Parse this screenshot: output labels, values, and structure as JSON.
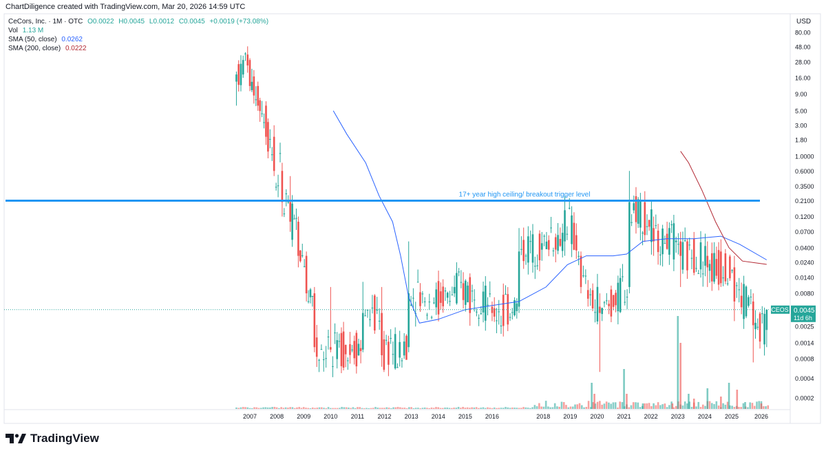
{
  "header": {
    "created_by": "ChartDiligence created with TradingView.com, Mar 20, 2026 14:59 UTC"
  },
  "legend": {
    "symbol_line": "CeCors, Inc. · 1M · OTC",
    "o": "O0.0022",
    "h": "H0.0045",
    "l": "L0.0012",
    "c": "C0.0045",
    "change": "+0.0019 (+73.08%)",
    "vol_label": "Vol",
    "vol_value": "1.13 M",
    "sma50_label": "SMA (50, close)",
    "sma50_value": "0.0262",
    "sma200_label": "SMA (200, close)",
    "sma200_value": "0.0222"
  },
  "colors": {
    "up": "#26a69a",
    "down": "#ef5350",
    "sma50": "#2962ff",
    "sma200": "#b22833",
    "trendline": "#2196f3",
    "annotation": "#2196f3",
    "last_price": "#26a69a"
  },
  "price_axis": {
    "currency": "USD",
    "last_price_label": "0.0045",
    "last_price_timer": "11d 6h",
    "symbol_tag": "CEOS"
  },
  "footer": {
    "brand": "TradingView"
  },
  "chart_data": {
    "type": "candlestick",
    "scale": "log",
    "interval": "1M",
    "y_ticks": [
      "80.00",
      "48.00",
      "28.00",
      "16.00",
      "9.00",
      "5.00",
      "3.00",
      "1.80",
      "1.0000",
      "0.6000",
      "0.3500",
      "0.2100",
      "0.1200",
      "0.0700",
      "0.0400",
      "0.0240",
      "0.0140",
      "0.0080",
      "0.0045",
      "0.0025",
      "0.0014",
      "0.0008",
      "0.0004",
      "0.0002"
    ],
    "x_ticks": [
      "2007",
      "2008",
      "2009",
      "2010",
      "2011",
      "2012",
      "2013",
      "2014",
      "2015",
      "2016",
      "2018",
      "2019",
      "2020",
      "2021",
      "2022",
      "2023",
      "2024",
      "2025",
      "2026"
    ],
    "horizontal_line": {
      "value": 0.21,
      "label": "17+ year high ceiling/ breakout trigger level"
    },
    "last_price": 0.0045,
    "candles_approx": [
      {
        "t": "2006.5",
        "o": 14,
        "h": 20,
        "l": 6,
        "c": 18
      },
      {
        "t": "2006.75",
        "o": 18,
        "h": 35,
        "l": 16,
        "c": 30
      },
      {
        "t": "2007.0",
        "o": 30,
        "h": 32,
        "l": 10,
        "c": 12
      },
      {
        "t": "2007.3",
        "o": 12,
        "h": 14,
        "l": 5,
        "c": 6
      },
      {
        "t": "2007.6",
        "o": 6,
        "h": 7,
        "l": 1.5,
        "c": 2
      },
      {
        "t": "2007.9",
        "o": 2,
        "h": 3,
        "l": 0.5,
        "c": 0.6
      },
      {
        "t": "2008.2",
        "o": 0.6,
        "h": 0.8,
        "l": 0.12,
        "c": 0.2
      },
      {
        "t": "2008.5",
        "o": 0.2,
        "h": 0.5,
        "l": 0.07,
        "c": 0.1
      },
      {
        "t": "2008.8",
        "o": 0.1,
        "h": 0.12,
        "l": 0.02,
        "c": 0.03
      },
      {
        "t": "2009.1",
        "o": 0.03,
        "h": 0.035,
        "l": 0.006,
        "c": 0.008
      },
      {
        "t": "2009.4",
        "o": 0.008,
        "h": 0.01,
        "l": 0.001,
        "c": 0.0012
      },
      {
        "t": "2010.0",
        "o": 0.0012,
        "h": 0.01,
        "l": 0.001,
        "c": 0.0011
      },
      {
        "t": "2010.8",
        "o": 0.0011,
        "h": 0.0013,
        "l": 0.001,
        "c": 0.0011
      },
      {
        "t": "2011.2",
        "o": 0.0011,
        "h": 0.012,
        "l": 0.001,
        "c": 0.004
      },
      {
        "t": "2011.9",
        "o": 0.004,
        "h": 0.01,
        "l": 0.0006,
        "c": 0.0009
      },
      {
        "t": "2012.9",
        "o": 0.0012,
        "h": 0.05,
        "l": 0.001,
        "c": 0.008
      },
      {
        "t": "2013.5",
        "o": 0.006,
        "h": 0.007,
        "l": 0.005,
        "c": 0.006
      },
      {
        "t": "2014.6",
        "o": 0.008,
        "h": 0.015,
        "l": 0.007,
        "c": 0.01
      },
      {
        "t": "2016.0",
        "o": 0.005,
        "h": 0.006,
        "l": 0.003,
        "c": 0.004
      },
      {
        "t": "2017.0",
        "o": 0.005,
        "h": 0.08,
        "l": 0.004,
        "c": 0.035
      },
      {
        "t": "2018.7",
        "o": 0.05,
        "h": 0.25,
        "l": 0.03,
        "c": 0.15
      },
      {
        "t": "2019.3",
        "o": 0.03,
        "h": 0.035,
        "l": 0.008,
        "c": 0.01
      },
      {
        "t": "2020.0",
        "o": 0.005,
        "h": 0.008,
        "l": 0.0005,
        "c": 0.004
      },
      {
        "t": "2021.1",
        "o": 0.01,
        "h": 0.6,
        "l": 0.008,
        "c": 0.2
      },
      {
        "t": "2022.0",
        "o": 0.08,
        "h": 0.12,
        "l": 0.03,
        "c": 0.05
      },
      {
        "t": "2023.0",
        "o": 0.05,
        "h": 0.07,
        "l": 0.01,
        "c": 0.03
      },
      {
        "t": "2024.0",
        "o": 0.03,
        "h": 0.05,
        "l": 0.01,
        "c": 0.02
      },
      {
        "t": "2025.0",
        "o": 0.02,
        "h": 0.03,
        "l": 0.003,
        "c": 0.006
      },
      {
        "t": "2025.7",
        "o": 0.006,
        "h": 0.008,
        "l": 0.0007,
        "c": 0.0026
      },
      {
        "t": "2026.2",
        "o": 0.0022,
        "h": 0.0045,
        "l": 0.0012,
        "c": 0.0045
      }
    ],
    "sma50_approx": [
      {
        "t": 2010.1,
        "v": 5.0
      },
      {
        "t": 2010.6,
        "v": 2.2
      },
      {
        "t": 2011.3,
        "v": 0.8
      },
      {
        "t": 2011.8,
        "v": 0.25
      },
      {
        "t": 2012.3,
        "v": 0.1
      },
      {
        "t": 2012.6,
        "v": 0.03
      },
      {
        "t": 2012.9,
        "v": 0.007
      },
      {
        "t": 2013.3,
        "v": 0.0028
      },
      {
        "t": 2014.0,
        "v": 0.0032
      },
      {
        "t": 2015.0,
        "v": 0.0045
      },
      {
        "t": 2016.0,
        "v": 0.0052
      },
      {
        "t": 2017.0,
        "v": 0.006
      },
      {
        "t": 2018.0,
        "v": 0.01
      },
      {
        "t": 2018.8,
        "v": 0.022
      },
      {
        "t": 2019.5,
        "v": 0.03
      },
      {
        "t": 2020.5,
        "v": 0.03
      },
      {
        "t": 2021.0,
        "v": 0.032
      },
      {
        "t": 2021.6,
        "v": 0.05
      },
      {
        "t": 2022.5,
        "v": 0.055
      },
      {
        "t": 2023.5,
        "v": 0.055
      },
      {
        "t": 2024.5,
        "v": 0.06
      },
      {
        "t": 2025.2,
        "v": 0.045
      },
      {
        "t": 2026.2,
        "v": 0.026
      }
    ],
    "sma200_approx": [
      {
        "t": 2023.0,
        "v": 1.2
      },
      {
        "t": 2023.3,
        "v": 0.8
      },
      {
        "t": 2023.8,
        "v": 0.3
      },
      {
        "t": 2024.3,
        "v": 0.1
      },
      {
        "t": 2024.8,
        "v": 0.04
      },
      {
        "t": 2025.3,
        "v": 0.025
      },
      {
        "t": 2026.2,
        "v": 0.0222
      }
    ]
  }
}
